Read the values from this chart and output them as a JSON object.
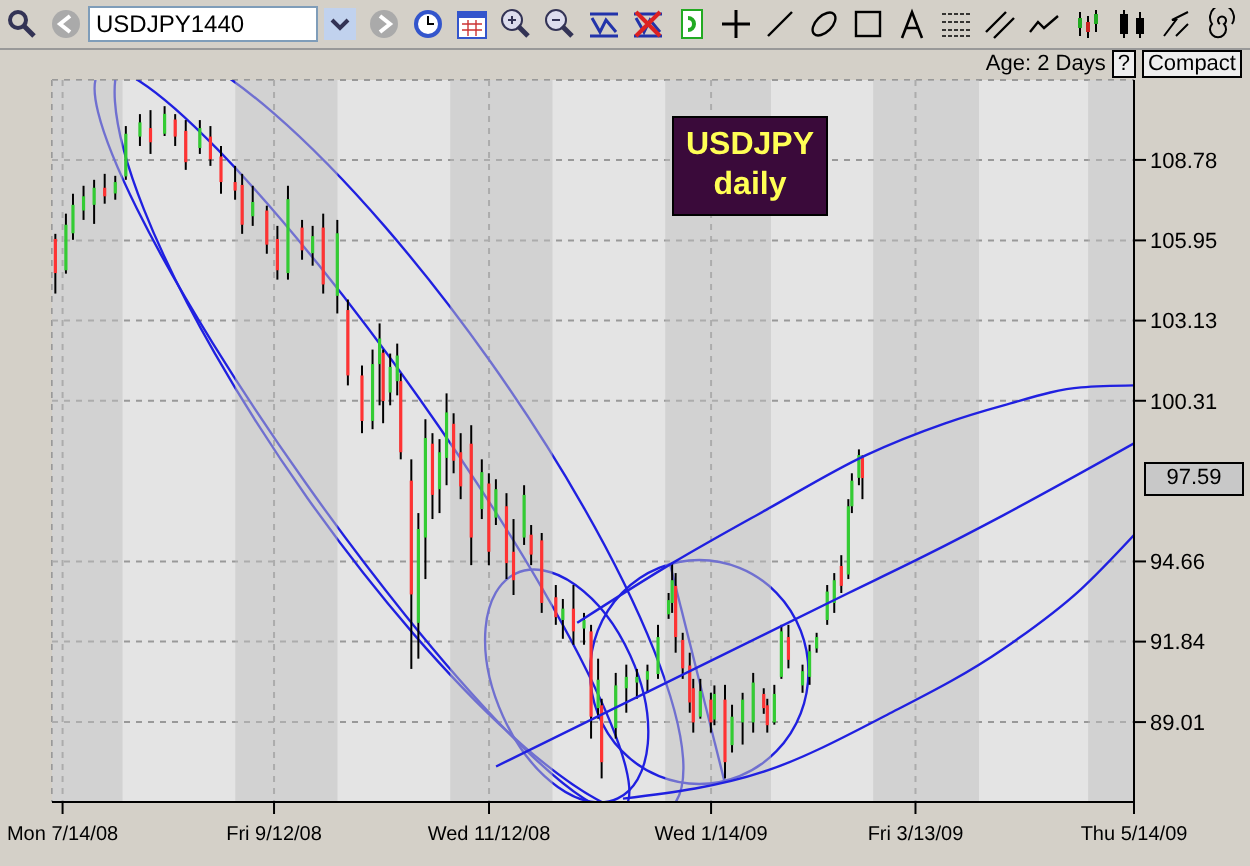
{
  "chart_data": {
    "type": "candlestick",
    "title": "USDJPY daily",
    "annotations": [
      "USDJPY1440",
      "Age: 2 Days",
      "?",
      "Compact",
      "97.59"
    ],
    "series": [
      {
        "type": "line",
        "color": "#2020e0",
        "x": [
          "2008-12-07",
          "2009-01-03",
          "2009-01-30",
          "2009-02-27",
          "2009-03-21",
          "2009-04-07",
          "2009-04-29",
          "2009-05-14"
        ],
        "values": [
          92.5,
          94.6,
          96.5,
          98.4,
          99.5,
          100.15,
          100.78,
          100.85
        ]
      },
      {
        "type": "line",
        "color": "#2020e0",
        "x": [
          "2008-11-14",
          "2009-02-22",
          "2009-03-16",
          "2009-04-07",
          "2009-05-14"
        ],
        "values": [
          87.45,
          93.55,
          94.88,
          96.29,
          98.81
        ]
      },
      {
        "type": "line",
        "color": "#2020e0",
        "x": [
          "2008-12-20",
          "2009-01-30",
          "2009-03-05",
          "2009-04-07",
          "2009-04-29",
          "2009-05-14"
        ],
        "values": [
          86.32,
          87.31,
          89.27,
          91.59,
          93.69,
          95.59
        ]
      }
    ],
    "x": [
      "2008-07-12",
      "2008-07-15",
      "2008-07-17",
      "2008-07-20",
      "2008-07-23",
      "2008-07-26",
      "2008-07-29",
      "2008-08-01",
      "2008-08-05",
      "2008-08-08",
      "2008-08-12",
      "2008-08-15",
      "2008-08-18",
      "2008-08-22",
      "2008-08-25",
      "2008-08-28",
      "2008-09-01",
      "2008-09-03",
      "2008-09-06",
      "2008-09-10",
      "2008-09-13",
      "2008-09-16",
      "2008-09-20",
      "2008-09-23",
      "2008-09-26",
      "2008-09-30",
      "2008-10-03",
      "2008-10-07",
      "2008-10-10",
      "2008-10-12",
      "2008-10-13",
      "2008-10-15",
      "2008-10-17",
      "2008-10-18",
      "2008-10-21",
      "2008-10-23",
      "2008-10-25",
      "2008-10-27",
      "2008-10-29",
      "2008-10-31",
      "2008-11-02",
      "2008-11-04",
      "2008-11-07",
      "2008-11-10",
      "2008-11-12",
      "2008-11-14",
      "2008-11-17",
      "2008-11-19",
      "2008-11-22",
      "2008-11-24",
      "2008-11-27",
      "2008-12-01",
      "2008-12-03",
      "2008-12-06",
      "2008-12-09",
      "2008-12-11",
      "2008-12-13",
      "2008-12-14",
      "2008-12-18",
      "2008-12-21",
      "2008-12-24",
      "2008-12-27",
      "2008-12-30",
      "2009-01-02",
      "2009-01-03",
      "2009-01-04",
      "2009-01-06",
      "2009-01-08",
      "2009-01-09",
      "2009-01-11",
      "2009-01-14",
      "2009-01-15",
      "2009-01-18",
      "2009-01-20",
      "2009-01-23",
      "2009-01-26",
      "2009-01-29",
      "2009-01-30",
      "2009-02-01",
      "2009-02-03",
      "2009-02-05",
      "2009-02-09",
      "2009-02-11",
      "2009-02-13",
      "2009-02-16",
      "2009-02-18",
      "2009-02-20",
      "2009-02-22",
      "2009-02-23",
      "2009-02-25",
      "2009-02-26"
    ],
    "ohlc": [
      [
        106.0,
        106.18,
        104.08,
        104.8
      ],
      [
        104.9,
        106.89,
        104.78,
        106.5
      ],
      [
        106.2,
        107.59,
        105.97,
        107.2
      ],
      [
        107.0,
        107.87,
        106.67,
        107.5
      ],
      [
        107.2,
        108.08,
        106.53,
        107.8
      ],
      [
        107.8,
        108.29,
        107.24,
        107.5
      ],
      [
        107.6,
        108.22,
        107.38,
        108.0
      ],
      [
        108.2,
        109.97,
        108.08,
        109.7
      ],
      [
        109.6,
        110.39,
        109.27,
        110.1
      ],
      [
        109.9,
        110.53,
        108.99,
        109.4
      ],
      [
        109.7,
        110.67,
        109.62,
        110.4
      ],
      [
        110.2,
        110.39,
        109.27,
        109.6
      ],
      [
        109.8,
        110.18,
        108.43,
        108.7
      ],
      [
        109.2,
        110.18,
        108.99,
        109.9
      ],
      [
        109.6,
        109.97,
        108.57,
        108.8
      ],
      [
        108.9,
        109.27,
        107.59,
        108.0
      ],
      [
        108.0,
        108.57,
        107.38,
        107.7
      ],
      [
        107.9,
        108.29,
        106.18,
        106.5
      ],
      [
        106.8,
        107.87,
        106.46,
        107.3
      ],
      [
        107.0,
        107.17,
        105.48,
        105.8
      ],
      [
        106.0,
        106.46,
        104.57,
        104.9
      ],
      [
        104.8,
        107.87,
        104.57,
        107.4
      ],
      [
        106.4,
        106.67,
        105.27,
        105.6
      ],
      [
        105.5,
        106.46,
        105.06,
        106.1
      ],
      [
        106.4,
        106.89,
        104.08,
        104.4
      ],
      [
        104.0,
        106.67,
        103.38,
        106.2
      ],
      [
        103.5,
        103.87,
        100.85,
        101.2
      ],
      [
        101.2,
        101.55,
        99.17,
        99.6
      ],
      [
        99.6,
        102.11,
        99.31,
        101.6
      ],
      [
        101.6,
        103.03,
        100.15,
        102.5
      ],
      [
        102.0,
        102.11,
        99.52,
        100.3
      ],
      [
        100.6,
        101.97,
        100.15,
        101.5
      ],
      [
        101.0,
        102.32,
        100.5,
        101.9
      ],
      [
        101.0,
        101.27,
        98.25,
        98.5
      ],
      [
        97.5,
        98.25,
        90.88,
        93.5
      ],
      [
        92.5,
        96.36,
        91.24,
        95.8
      ],
      [
        95.5,
        99.66,
        94.04,
        99.0
      ],
      [
        98.8,
        99.17,
        96.15,
        97.0
      ],
      [
        97.2,
        98.96,
        96.36,
        98.5
      ],
      [
        98.3,
        100.57,
        97.34,
        99.9
      ],
      [
        99.5,
        99.87,
        97.76,
        98.2
      ],
      [
        98.5,
        99.17,
        96.85,
        97.3
      ],
      [
        98.8,
        99.45,
        94.53,
        95.5
      ],
      [
        96.5,
        98.25,
        96.15,
        97.8
      ],
      [
        97.4,
        97.76,
        94.53,
        95.0
      ],
      [
        96.2,
        97.55,
        95.94,
        97.2
      ],
      [
        96.6,
        97.06,
        94.04,
        94.6
      ],
      [
        95.0,
        96.15,
        93.48,
        94.0
      ],
      [
        95.5,
        97.34,
        95.24,
        97.0
      ],
      [
        95.6,
        95.94,
        94.53,
        94.9
      ],
      [
        95.4,
        95.66,
        92.85,
        93.2
      ],
      [
        93.4,
        93.83,
        92.43,
        92.7
      ],
      [
        92.6,
        93.34,
        91.94,
        93.0
      ],
      [
        93.0,
        93.83,
        91.73,
        92.2
      ],
      [
        92.3,
        92.85,
        91.73,
        92.6
      ],
      [
        92.2,
        92.43,
        88.43,
        89.2
      ],
      [
        89.5,
        91.24,
        89.13,
        90.5
      ],
      [
        89.6,
        89.83,
        87.03,
        87.6
      ],
      [
        88.8,
        90.74,
        88.43,
        90.3
      ],
      [
        90.2,
        91.03,
        89.34,
        90.6
      ],
      [
        90.4,
        90.88,
        89.83,
        90.6
      ],
      [
        90.5,
        91.03,
        90.04,
        90.8
      ],
      [
        90.7,
        92.43,
        90.53,
        92.0
      ],
      [
        92.8,
        93.55,
        92.64,
        93.3
      ],
      [
        93.2,
        94.6,
        92.85,
        94.0
      ],
      [
        93.8,
        94.25,
        91.45,
        92.0
      ],
      [
        91.9,
        92.15,
        90.53,
        90.9
      ],
      [
        91.0,
        91.45,
        89.34,
        89.7
      ],
      [
        90.2,
        90.53,
        88.64,
        89.0
      ],
      [
        89.2,
        90.53,
        89.13,
        90.1
      ],
      [
        89.8,
        90.04,
        88.64,
        89.0
      ],
      [
        89.1,
        90.3,
        88.9,
        90.0
      ],
      [
        89.8,
        90.32,
        87.03,
        87.6
      ],
      [
        88.2,
        89.62,
        87.94,
        89.2
      ],
      [
        89.0,
        90.04,
        88.22,
        89.8
      ],
      [
        89.0,
        90.74,
        88.64,
        90.4
      ],
      [
        90.0,
        90.2,
        89.3,
        89.5
      ],
      [
        89.6,
        89.83,
        88.64,
        88.9
      ],
      [
        89.0,
        90.32,
        88.92,
        90.0
      ],
      [
        90.6,
        92.43,
        90.53,
        92.2
      ],
      [
        92.0,
        92.43,
        90.9,
        91.2
      ],
      [
        90.3,
        91.03,
        90.04,
        90.8
      ],
      [
        90.6,
        91.73,
        90.32,
        91.5
      ],
      [
        91.6,
        92.15,
        91.45,
        92.0
      ],
      [
        92.6,
        93.83,
        92.43,
        93.6
      ],
      [
        93.2,
        94.25,
        92.85,
        94.0
      ],
      [
        94.5,
        94.88,
        93.55,
        93.8
      ],
      [
        94.2,
        96.85,
        94.04,
        96.6
      ],
      [
        96.6,
        97.76,
        96.36,
        97.5
      ],
      [
        97.6,
        98.6,
        97.34,
        98.4
      ],
      [
        98.3,
        98.39,
        96.85,
        97.59
      ]
    ],
    "xlim": [
      "2008-07-11",
      "2009-05-14"
    ],
    "xticks": [
      {
        "value": "2008-07-14",
        "label": "Mon 7/14/08"
      },
      {
        "value": "2008-09-12",
        "label": "Fri 9/12/08"
      },
      {
        "value": "2008-11-12",
        "label": "Wed 11/12/08"
      },
      {
        "value": "2009-01-14",
        "label": "Wed 1/14/09"
      },
      {
        "value": "2009-03-13",
        "label": "Fri 3/13/09"
      },
      {
        "value": "2009-05-14",
        "label": "Thu 5/14/09"
      }
    ],
    "ylim": [
      86.2,
      111.59
    ],
    "yticks": [
      89.01,
      91.84,
      94.66,
      100.31,
      103.13,
      105.95,
      108.78
    ],
    "bands": [
      {
        "axis": "x",
        "from": "2008-07-11",
        "to": "2008-07-31",
        "color": "#c0c0c0"
      },
      {
        "axis": "x",
        "from": "2008-09-01",
        "to": "2008-09-30",
        "color": "#c0c0c0"
      },
      {
        "axis": "x",
        "from": "2008-11-01",
        "to": "2008-11-30",
        "color": "#c0c0c0"
      },
      {
        "axis": "x",
        "from": "2009-01-01",
        "to": "2009-01-31",
        "color": "#c0c0c0"
      },
      {
        "axis": "x",
        "from": "2009-03-01",
        "to": "2009-03-31",
        "color": "#c0c0c0"
      },
      {
        "axis": "x",
        "from": "2009-05-01",
        "to": "2009-05-14",
        "color": "#c0c0c0"
      }
    ],
    "grid": true
  }
}
